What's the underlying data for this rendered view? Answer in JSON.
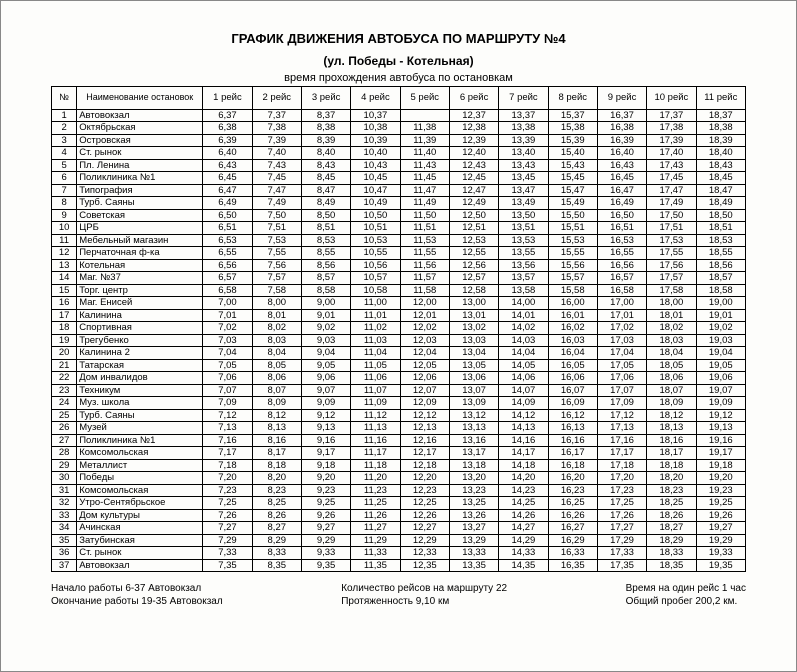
{
  "title_line1": "ГРАФИК  ДВИЖЕНИЯ АВТОБУСА ПО МАРШРУТУ №4",
  "title_line2": "(ул. Победы - Котельная)",
  "caption": "время прохождения автобуса по остановкам",
  "header": {
    "num": "№",
    "name": "Наименование остановок",
    "trips": [
      "1 рейс",
      "2 рейс",
      "3 рейс",
      "4 рейс",
      "5 рейс",
      "6 рейс",
      "7 рейс",
      "8 рейс",
      "9 рейс",
      "10 рейс",
      "11 рейс"
    ]
  },
  "rows": [
    {
      "n": "1",
      "name": "Автовокзал",
      "t": [
        "6,37",
        "7,37",
        "8,37",
        "10,37",
        "",
        "12,37",
        "13,37",
        "15,37",
        "16,37",
        "17,37",
        "18,37"
      ]
    },
    {
      "n": "2",
      "name": "Октябрьская",
      "t": [
        "6,38",
        "7,38",
        "8,38",
        "10,38",
        "11,38",
        "12,38",
        "13,38",
        "15,38",
        "16,38",
        "17,38",
        "18,38"
      ]
    },
    {
      "n": "3",
      "name": "Островская",
      "t": [
        "6,39",
        "7,39",
        "8,39",
        "10,39",
        "11,39",
        "12,39",
        "13,39",
        "15,39",
        "16,39",
        "17,39",
        "18,39"
      ]
    },
    {
      "n": "4",
      "name": "Ст. рынок",
      "t": [
        "6,40",
        "7,40",
        "8,40",
        "10,40",
        "11,40",
        "12,40",
        "13,40",
        "15,40",
        "16,40",
        "17,40",
        "18,40"
      ]
    },
    {
      "n": "5",
      "name": "Пл. Ленина",
      "t": [
        "6,43",
        "7,43",
        "8,43",
        "10,43",
        "11,43",
        "12,43",
        "13,43",
        "15,43",
        "16,43",
        "17,43",
        "18,43"
      ]
    },
    {
      "n": "6",
      "name": "Поликлиника №1",
      "t": [
        "6,45",
        "7,45",
        "8,45",
        "10,45",
        "11,45",
        "12,45",
        "13,45",
        "15,45",
        "16,45",
        "17,45",
        "18,45"
      ]
    },
    {
      "n": "7",
      "name": "Типография",
      "t": [
        "6,47",
        "7,47",
        "8,47",
        "10,47",
        "11,47",
        "12,47",
        "13,47",
        "15,47",
        "16,47",
        "17,47",
        "18,47"
      ]
    },
    {
      "n": "8",
      "name": "Турб. Саяны",
      "t": [
        "6,49",
        "7,49",
        "8,49",
        "10,49",
        "11,49",
        "12,49",
        "13,49",
        "15,49",
        "16,49",
        "17,49",
        "18,49"
      ]
    },
    {
      "n": "9",
      "name": "Советская",
      "t": [
        "6,50",
        "7,50",
        "8,50",
        "10,50",
        "11,50",
        "12,50",
        "13,50",
        "15,50",
        "16,50",
        "17,50",
        "18,50"
      ]
    },
    {
      "n": "10",
      "name": "ЦРБ",
      "t": [
        "6,51",
        "7,51",
        "8,51",
        "10,51",
        "11,51",
        "12,51",
        "13,51",
        "15,51",
        "16,51",
        "17,51",
        "18,51"
      ]
    },
    {
      "n": "11",
      "name": "Мебельный магазин",
      "t": [
        "6,53",
        "7,53",
        "8,53",
        "10,53",
        "11,53",
        "12,53",
        "13,53",
        "15,53",
        "16,53",
        "17,53",
        "18,53"
      ]
    },
    {
      "n": "12",
      "name": "Перчаточная ф-ка",
      "t": [
        "6,55",
        "7,55",
        "8,55",
        "10,55",
        "11,55",
        "12,55",
        "13,55",
        "15,55",
        "16,55",
        "17,55",
        "18,55"
      ]
    },
    {
      "n": "13",
      "name": "Котельная",
      "t": [
        "6,56",
        "7,56",
        "8,56",
        "10,56",
        "11,56",
        "12,56",
        "13,56",
        "15,56",
        "16,56",
        "17,56",
        "18,56"
      ]
    },
    {
      "n": "14",
      "name": "Маг. №37",
      "t": [
        "6,57",
        "7,57",
        "8,57",
        "10,57",
        "11,57",
        "12,57",
        "13,57",
        "15,57",
        "16,57",
        "17,57",
        "18,57"
      ]
    },
    {
      "n": "15",
      "name": "Торг. центр",
      "t": [
        "6,58",
        "7,58",
        "8,58",
        "10,58",
        "11,58",
        "12,58",
        "13,58",
        "15,58",
        "16,58",
        "17,58",
        "18,58"
      ]
    },
    {
      "n": "16",
      "name": "Маг. Енисей",
      "t": [
        "7,00",
        "8,00",
        "9,00",
        "11,00",
        "12,00",
        "13,00",
        "14,00",
        "16,00",
        "17,00",
        "18,00",
        "19,00"
      ]
    },
    {
      "n": "17",
      "name": "Калинина",
      "t": [
        "7,01",
        "8,01",
        "9,01",
        "11,01",
        "12,01",
        "13,01",
        "14,01",
        "16,01",
        "17,01",
        "18,01",
        "19,01"
      ]
    },
    {
      "n": "18",
      "name": "Спортивная",
      "t": [
        "7,02",
        "8,02",
        "9,02",
        "11,02",
        "12,02",
        "13,02",
        "14,02",
        "16,02",
        "17,02",
        "18,02",
        "19,02"
      ]
    },
    {
      "n": "19",
      "name": "Трегубенко",
      "t": [
        "7,03",
        "8,03",
        "9,03",
        "11,03",
        "12,03",
        "13,03",
        "14,03",
        "16,03",
        "17,03",
        "18,03",
        "19,03"
      ]
    },
    {
      "n": "20",
      "name": "Калинина 2",
      "t": [
        "7,04",
        "8,04",
        "9,04",
        "11,04",
        "12,04",
        "13,04",
        "14,04",
        "16,04",
        "17,04",
        "18,04",
        "19,04"
      ]
    },
    {
      "n": "21",
      "name": "Татарская",
      "t": [
        "7,05",
        "8,05",
        "9,05",
        "11,05",
        "12,05",
        "13,05",
        "14,05",
        "16,05",
        "17,05",
        "18,05",
        "19,05"
      ]
    },
    {
      "n": "22",
      "name": "Дом инвалидов",
      "t": [
        "7,06",
        "8,06",
        "9,06",
        "11,06",
        "12,06",
        "13,06",
        "14,06",
        "16,06",
        "17,06",
        "18,06",
        "19,06"
      ]
    },
    {
      "n": "23",
      "name": "Техникум",
      "t": [
        "7,07",
        "8,07",
        "9,07",
        "11,07",
        "12,07",
        "13,07",
        "14,07",
        "16,07",
        "17,07",
        "18,07",
        "19,07"
      ]
    },
    {
      "n": "24",
      "name": "Муз. школа",
      "t": [
        "7,09",
        "8,09",
        "9,09",
        "11,09",
        "12,09",
        "13,09",
        "14,09",
        "16,09",
        "17,09",
        "18,09",
        "19,09"
      ]
    },
    {
      "n": "25",
      "name": "Турб. Саяны",
      "t": [
        "7,12",
        "8,12",
        "9,12",
        "11,12",
        "12,12",
        "13,12",
        "14,12",
        "16,12",
        "17,12",
        "18,12",
        "19,12"
      ]
    },
    {
      "n": "26",
      "name": "Музей",
      "t": [
        "7,13",
        "8,13",
        "9,13",
        "11,13",
        "12,13",
        "13,13",
        "14,13",
        "16,13",
        "17,13",
        "18,13",
        "19,13"
      ]
    },
    {
      "n": "27",
      "name": "Поликлиника №1",
      "t": [
        "7,16",
        "8,16",
        "9,16",
        "11,16",
        "12,16",
        "13,16",
        "14,16",
        "16,16",
        "17,16",
        "18,16",
        "19,16"
      ]
    },
    {
      "n": "28",
      "name": "Комсомольская",
      "t": [
        "7,17",
        "8,17",
        "9,17",
        "11,17",
        "12,17",
        "13,17",
        "14,17",
        "16,17",
        "17,17",
        "18,17",
        "19,17"
      ]
    },
    {
      "n": "29",
      "name": "Металлист",
      "t": [
        "7,18",
        "8,18",
        "9,18",
        "11,18",
        "12,18",
        "13,18",
        "14,18",
        "16,18",
        "17,18",
        "18,18",
        "19,18"
      ]
    },
    {
      "n": "30",
      "name": "Победы",
      "t": [
        "7,20",
        "8,20",
        "9,20",
        "11,20",
        "12,20",
        "13,20",
        "14,20",
        "16,20",
        "17,20",
        "18,20",
        "19,20"
      ]
    },
    {
      "n": "31",
      "name": "Комсомольская",
      "t": [
        "7,23",
        "8,23",
        "9,23",
        "11,23",
        "12,23",
        "13,23",
        "14,23",
        "16,23",
        "17,23",
        "18,23",
        "19,23"
      ]
    },
    {
      "n": "32",
      "name": "Утро-Сентябрьское",
      "t": [
        "7,25",
        "8,25",
        "9,25",
        "11,25",
        "12,25",
        "13,25",
        "14,25",
        "16,25",
        "17,25",
        "18,25",
        "19,25"
      ]
    },
    {
      "n": "33",
      "name": "Дом культуры",
      "t": [
        "7,26",
        "8,26",
        "9,26",
        "11,26",
        "12,26",
        "13,26",
        "14,26",
        "16,26",
        "17,26",
        "18,26",
        "19,26"
      ]
    },
    {
      "n": "34",
      "name": "Ачинская",
      "t": [
        "7,27",
        "8,27",
        "9,27",
        "11,27",
        "12,27",
        "13,27",
        "14,27",
        "16,27",
        "17,27",
        "18,27",
        "19,27"
      ]
    },
    {
      "n": "35",
      "name": "Затубинская",
      "t": [
        "7,29",
        "8,29",
        "9,29",
        "11,29",
        "12,29",
        "13,29",
        "14,29",
        "16,29",
        "17,29",
        "18,29",
        "19,29"
      ]
    },
    {
      "n": "36",
      "name": "Ст. рынок",
      "t": [
        "7,33",
        "8,33",
        "9,33",
        "11,33",
        "12,33",
        "13,33",
        "14,33",
        "16,33",
        "17,33",
        "18,33",
        "19,33"
      ]
    },
    {
      "n": "37",
      "name": "Автовокзал",
      "t": [
        "7,35",
        "8,35",
        "9,35",
        "11,35",
        "12,35",
        "13,35",
        "14,35",
        "16,35",
        "17,35",
        "18,35",
        "19,35"
      ]
    }
  ],
  "footer": {
    "left1": "Начало работы 6-37 Автовокзал",
    "left2": "Окончание работы 19-35 Автовокзал",
    "mid1": "Количество рейсов на маршруту 22",
    "mid2": "Протяженность 9,10 км",
    "right1": "Время на один рейс 1 час",
    "right2": "Общий пробег 200,2 км."
  }
}
